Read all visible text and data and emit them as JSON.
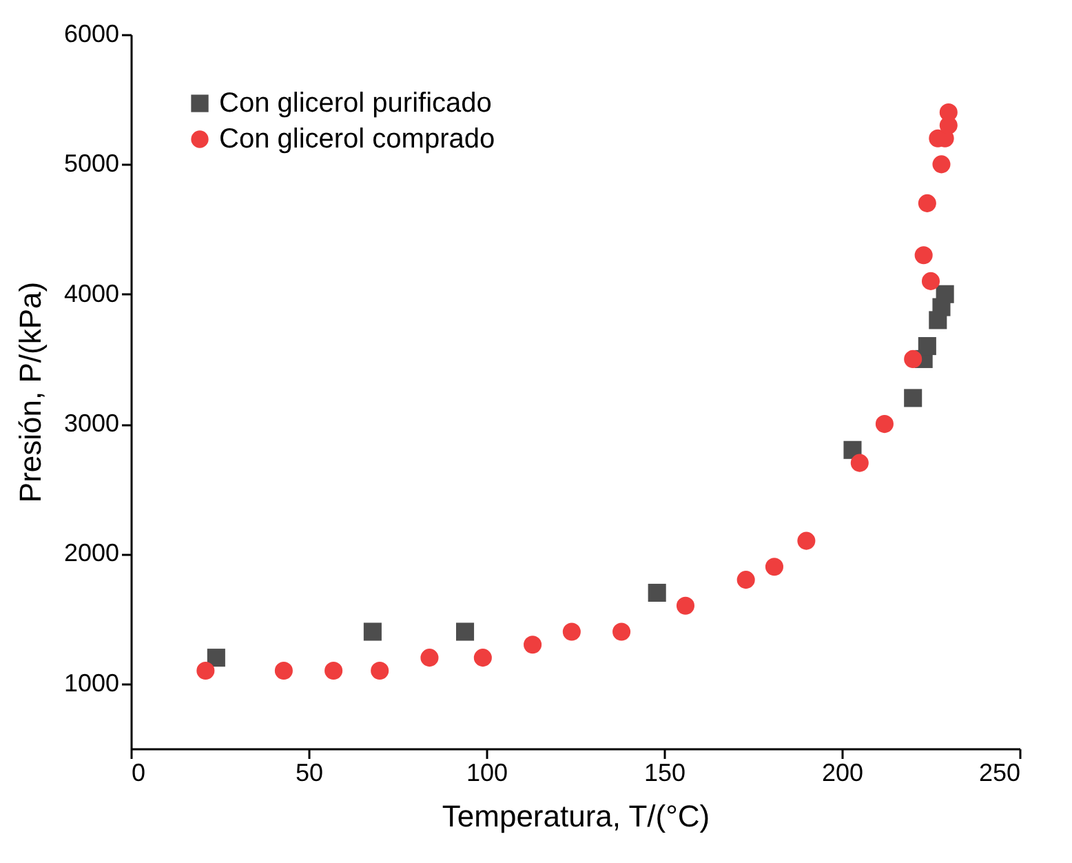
{
  "chart_data": {
    "type": "scatter",
    "xlabel": "Temperatura, T/(°C)",
    "ylabel": "Presión, P/(kPa)",
    "xlim": [
      0,
      250
    ],
    "xticks": [
      0,
      50,
      100,
      150,
      200,
      250
    ],
    "ylim": [
      500,
      6000
    ],
    "yticks": [
      1000,
      2000,
      3000,
      4000,
      5000,
      6000
    ],
    "grid": false,
    "legend": "top left",
    "series": [
      {
        "name": "Con glicerol purificado",
        "color": "#4d4d4d",
        "marker": "square",
        "x": [
          24,
          68,
          94,
          148,
          203,
          220,
          223,
          224,
          227,
          228,
          229
        ],
        "values": [
          1200,
          1400,
          1400,
          1700,
          2800,
          3200,
          3500,
          3600,
          3800,
          3900,
          4000
        ]
      },
      {
        "name": "Con glicerol comprado",
        "color": "#ef3e3e",
        "marker": "circle",
        "x": [
          21,
          43,
          57,
          70,
          84,
          99,
          113,
          124,
          138,
          156,
          173,
          181,
          190,
          205,
          212,
          220,
          223,
          225,
          224,
          228,
          227,
          229,
          230,
          230
        ],
        "values": [
          1100,
          1100,
          1100,
          1100,
          1200,
          1200,
          1300,
          1400,
          1400,
          1600,
          1800,
          1900,
          2100,
          2700,
          3000,
          3500,
          4300,
          4100,
          4700,
          5000,
          5200,
          5200,
          5300,
          5400
        ]
      }
    ]
  }
}
